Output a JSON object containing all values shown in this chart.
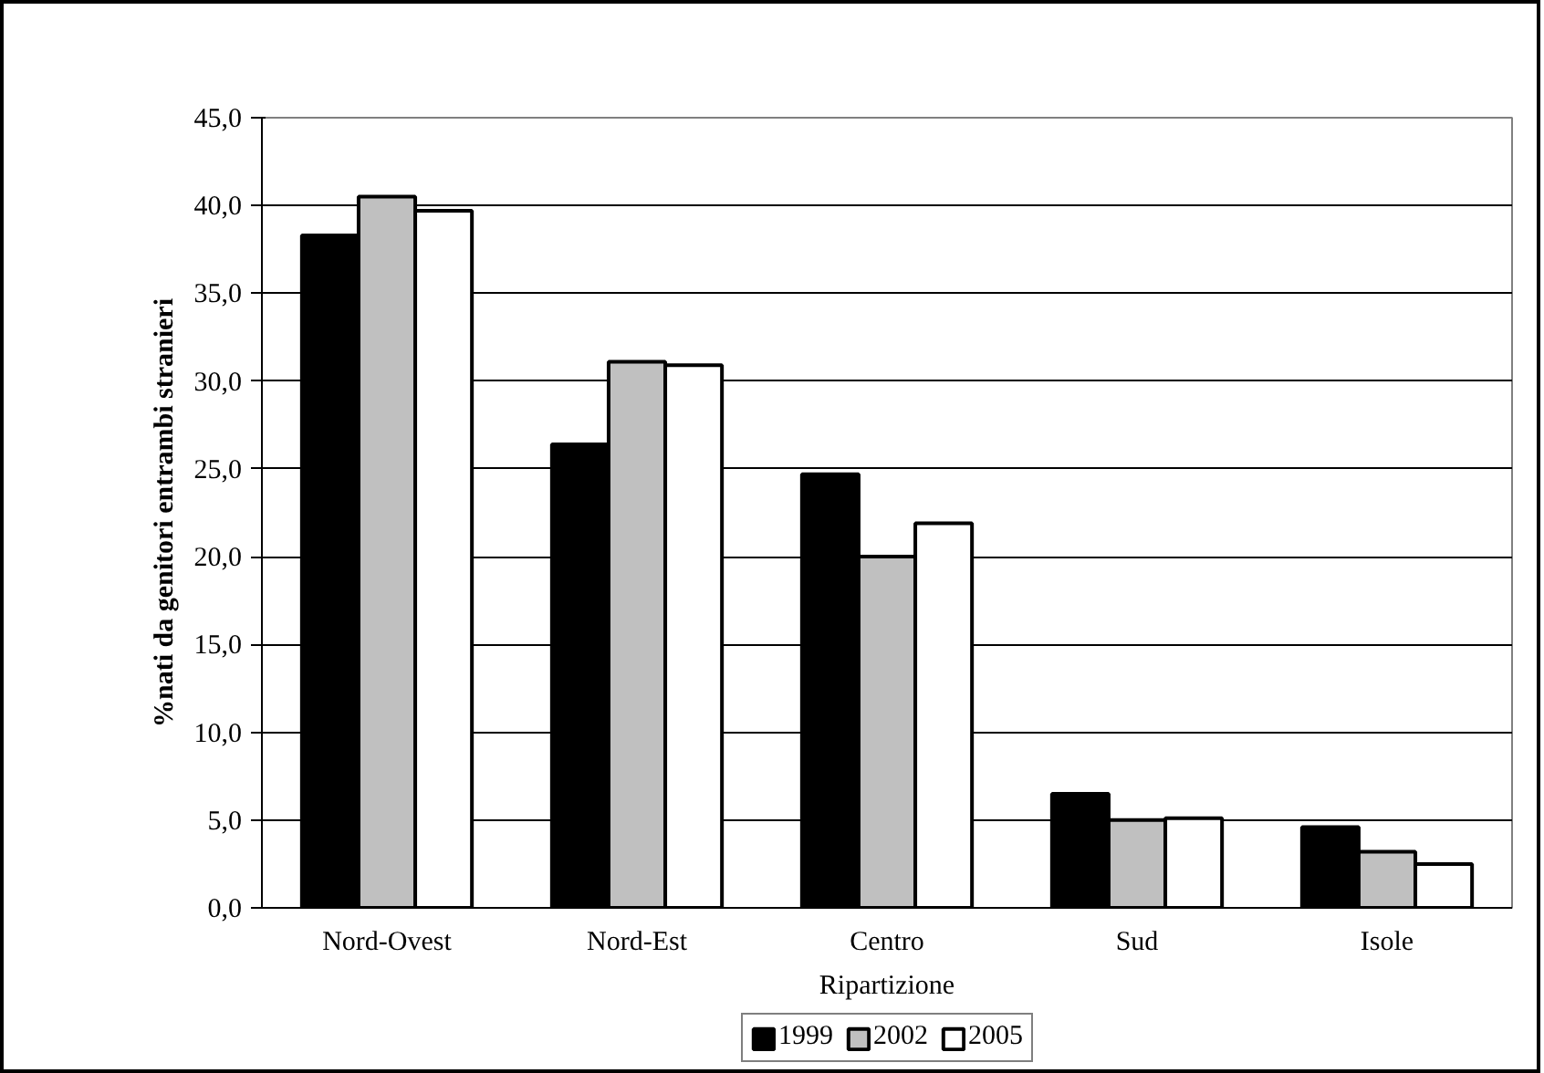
{
  "chart_data": {
    "type": "bar",
    "xlabel": "Ripartizione",
    "ylabel": "%nati da genitori entrambi stranieri",
    "categories": [
      "Nord-Ovest",
      "Nord-Est",
      "Centro",
      "Sud",
      "Isole"
    ],
    "series": [
      {
        "name": "1999",
        "color": "#000000",
        "values": [
          38.3,
          26.4,
          24.7,
          6.5,
          4.6
        ]
      },
      {
        "name": "2002",
        "color": "#c0c0c0",
        "values": [
          40.5,
          31.1,
          20.0,
          5.0,
          3.2
        ]
      },
      {
        "name": "2005",
        "color": "#ffffff",
        "values": [
          39.7,
          30.9,
          21.9,
          5.1,
          2.5
        ]
      }
    ],
    "ylim": [
      0,
      45
    ],
    "yticks": [
      {
        "value": 0,
        "label": "0,0"
      },
      {
        "value": 5,
        "label": "5,0"
      },
      {
        "value": 10,
        "label": "10,0"
      },
      {
        "value": 15,
        "label": "15,0"
      },
      {
        "value": 20,
        "label": "20,0"
      },
      {
        "value": 25,
        "label": "25,0"
      },
      {
        "value": 30,
        "label": "30,0"
      },
      {
        "value": 35,
        "label": "35,0"
      },
      {
        "value": 40,
        "label": "40,0"
      },
      {
        "value": 45,
        "label": "45,0"
      }
    ],
    "grid": "y",
    "legend": "bottom"
  }
}
